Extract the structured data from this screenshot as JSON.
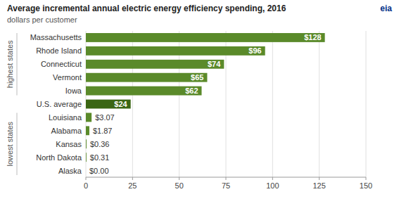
{
  "chart_data": {
    "type": "bar",
    "orientation": "horizontal",
    "title": "Average incremental annual electric energy efficiency spending, 2016",
    "subtitle": "dollars per customer",
    "categories": [
      "Massachusetts",
      "Rhode Island",
      "Connecticut",
      "Vermont",
      "Iowa",
      "U.S. average",
      "Louisiana",
      "Alabama",
      "Kansas",
      "North Dakota",
      "Alaska"
    ],
    "values": [
      128,
      96,
      74,
      65,
      62,
      24,
      3.07,
      1.87,
      0.36,
      0.31,
      0.0
    ],
    "value_labels": [
      "$128",
      "$96",
      "$74",
      "$65",
      "$62",
      "$24",
      "$3.07",
      "$1.87",
      "$0.36",
      "$0.31",
      "$0.00"
    ],
    "colors": [
      "#5a8a2a",
      "#5a8a2a",
      "#5a8a2a",
      "#5a8a2a",
      "#5a8a2a",
      "#3a6614",
      "#5a8a2a",
      "#5a8a2a",
      "#5a8a2a",
      "#5a8a2a",
      "#5a8a2a"
    ],
    "annotations": [
      "highest states",
      "lowest states",
      "eia"
    ],
    "xlim": [
      0,
      150
    ],
    "xticks": [
      0,
      25,
      50,
      75,
      100,
      125,
      150
    ],
    "grid": true,
    "data_labels": true
  }
}
